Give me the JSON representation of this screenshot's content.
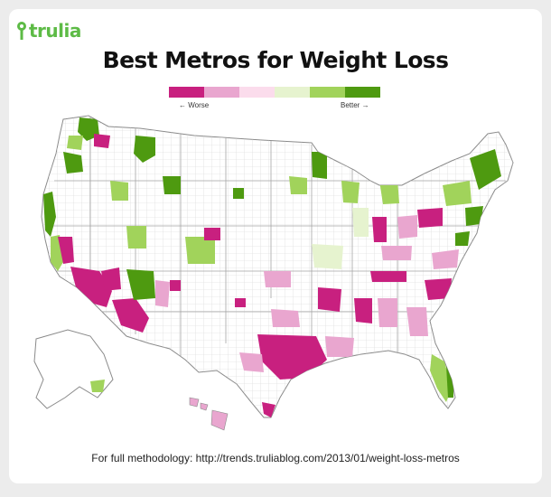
{
  "brand": {
    "name": "trulia",
    "color": "#5dbb46"
  },
  "title": "Best Metros for Weight Loss",
  "legend": {
    "low_label": "← Worse",
    "high_label": "Better →",
    "colors": [
      "#c8207f",
      "#e9a6cf",
      "#fbdcec",
      "#e6f3cf",
      "#a1d35b",
      "#4e9a10"
    ]
  },
  "footer": "For full methodology: http://trends.truliablog.com/2013/01/weight-loss-metros",
  "map": {
    "type": "choropleth",
    "region": "United States (counties / metros)",
    "outline_color": "#999999",
    "county_line_color": "#cfcfcf"
  }
}
